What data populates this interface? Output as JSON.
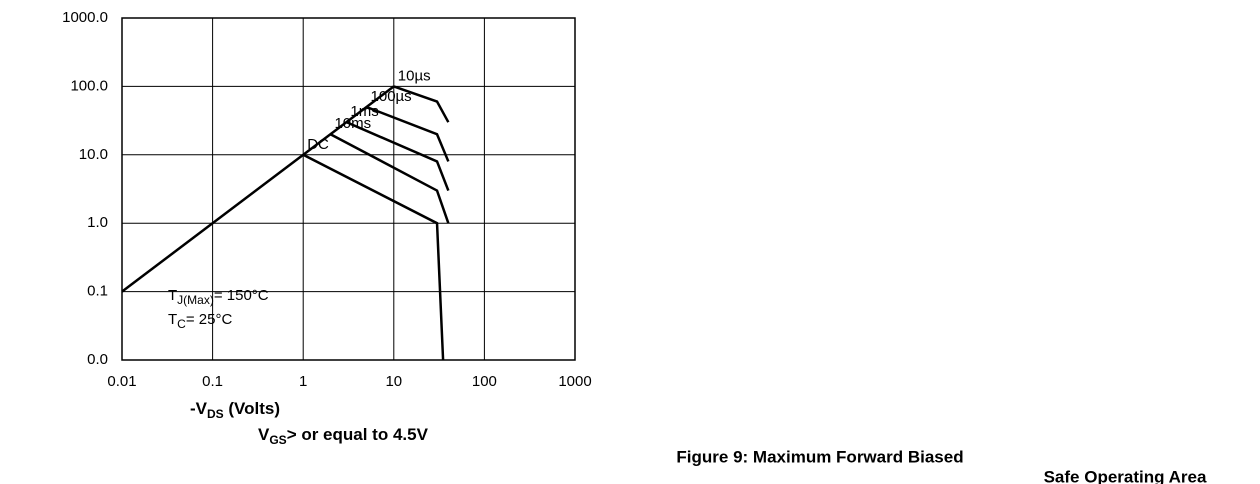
{
  "chart_data": {
    "type": "line",
    "log_x": true,
    "log_y": true,
    "grid": true,
    "xlim": [
      0.01,
      1000
    ],
    "xticks": [
      0.01,
      0.1,
      1,
      10,
      100,
      1000
    ],
    "ylim": [
      0.01,
      1000
    ],
    "yticks": [
      {
        "value": 1000,
        "label": "1000.0"
      },
      {
        "value": 100,
        "label": "100.0"
      },
      {
        "value": 10,
        "label": "10.0"
      },
      {
        "value": 1,
        "label": "1.0"
      },
      {
        "value": 0.1,
        "label": "0.1"
      },
      {
        "value": 0.01,
        "label": "0.0"
      }
    ],
    "series": [
      {
        "color": "#000000",
        "x": [
          0.01,
          10
        ],
        "values": [
          0.1,
          100
        ]
      },
      {
        "name": "10µs",
        "color": "#000000",
        "x": [
          10,
          30,
          40
        ],
        "values": [
          100,
          60,
          30
        ]
      },
      {
        "name": "100µs",
        "color": "#000000",
        "x": [
          5,
          30,
          40
        ],
        "values": [
          50,
          20,
          8
        ]
      },
      {
        "name": "1ms",
        "color": "#000000",
        "x": [
          3,
          30,
          40
        ],
        "values": [
          30,
          8,
          3
        ]
      },
      {
        "name": "10ms",
        "color": "#000000",
        "x": [
          2,
          30,
          40
        ],
        "values": [
          20,
          3,
          1
        ]
      },
      {
        "name": "DC",
        "color": "#000000",
        "x": [
          1,
          30,
          35
        ],
        "values": [
          10,
          1,
          0.01
        ]
      }
    ],
    "annotations": [
      {
        "main": "T",
        "sub": "J(Max)",
        "rest": "= 150°C"
      },
      {
        "main": "T",
        "sub": "C",
        "rest": "= 25°C"
      }
    ],
    "x_label": {
      "main": "-V",
      "sub": "DS",
      "rest": " (Volts)"
    },
    "note": {
      "main": "V",
      "sub": "GS",
      "rest": "> or equal to 4.5V"
    },
    "caption": [
      "Figure 9: Maximum Forward Biased",
      "Safe Operating Area"
    ]
  }
}
